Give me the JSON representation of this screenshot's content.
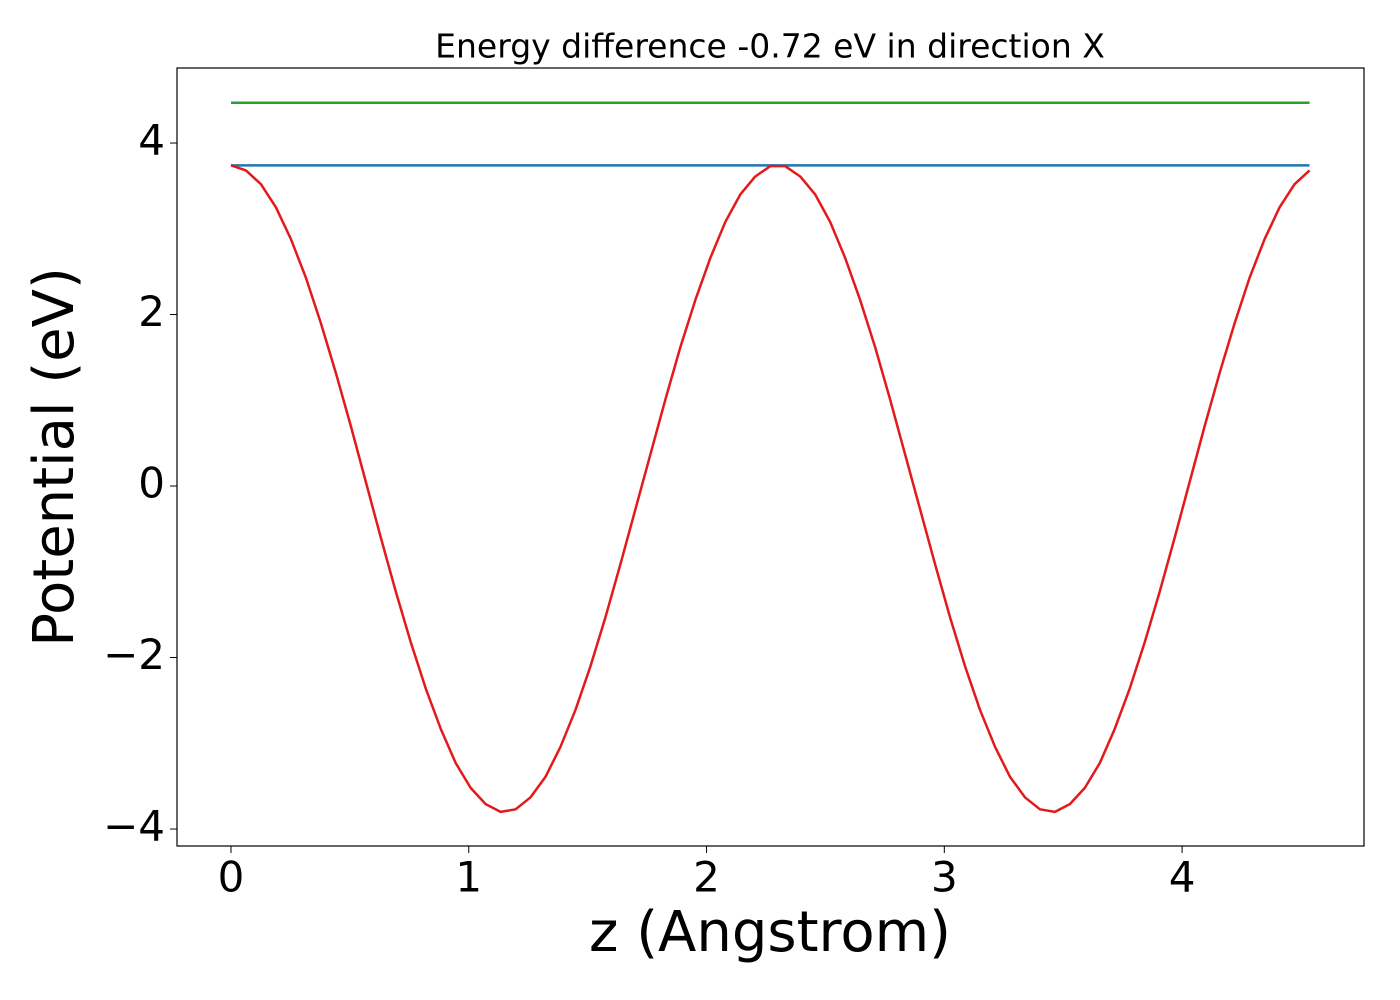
{
  "chart_data": {
    "type": "line",
    "title": "Energy difference -0.72 eV in direction X",
    "xlabel": "z (Angstrom)",
    "ylabel": "Potential (eV)",
    "xlim": [
      -0.227,
      4.765
    ],
    "ylim": [
      -4.198,
      4.875
    ],
    "xticks": [
      0,
      1,
      2,
      3,
      4
    ],
    "yticks": [
      {
        "value": -4,
        "label": "−4"
      },
      {
        "value": -2,
        "label": "−2"
      },
      0,
      2,
      4
    ],
    "grid": false,
    "series": [
      {
        "color": "#1f77b4",
        "x": [
          0,
          4.536
        ],
        "values": [
          3.74,
          3.74
        ]
      },
      {
        "color": "#2ca02c",
        "x": [
          0,
          4.536
        ],
        "values": [
          4.47,
          4.47
        ]
      },
      {
        "color": "#e31a1c",
        "x": [
          0,
          0.063,
          0.126,
          0.189,
          0.252,
          0.315,
          0.378,
          0.441,
          0.504,
          0.567,
          0.63,
          0.693,
          0.756,
          0.819,
          0.882,
          0.945,
          1.008,
          1.071,
          1.134,
          1.197,
          1.26,
          1.323,
          1.386,
          1.449,
          1.512,
          1.575,
          1.638,
          1.701,
          1.764,
          1.827,
          1.89,
          1.953,
          2.016,
          2.079,
          2.142,
          2.205,
          2.268,
          2.331,
          2.394,
          2.457,
          2.52,
          2.583,
          2.646,
          2.709,
          2.772,
          2.835,
          2.898,
          2.961,
          3.024,
          3.087,
          3.15,
          3.213,
          3.276,
          3.339,
          3.402,
          3.465,
          3.528,
          3.591,
          3.654,
          3.717,
          3.78,
          3.843,
          3.906,
          3.969,
          4.032,
          4.095,
          4.158,
          4.221,
          4.284,
          4.347,
          4.41,
          4.473,
          4.536
        ],
        "values": [
          3.74,
          3.68,
          3.52,
          3.25,
          2.88,
          2.43,
          1.9,
          1.32,
          0.7,
          0.05,
          -0.6,
          -1.23,
          -1.82,
          -2.36,
          -2.83,
          -3.23,
          -3.52,
          -3.71,
          -3.8,
          -3.77,
          -3.63,
          -3.39,
          -3.04,
          -2.61,
          -2.1,
          -1.53,
          -0.91,
          -0.27,
          0.37,
          1.01,
          1.62,
          2.17,
          2.66,
          3.08,
          3.4,
          3.61,
          3.73,
          3.73,
          3.61,
          3.4,
          3.08,
          2.66,
          2.17,
          1.62,
          1.01,
          0.37,
          -0.27,
          -0.91,
          -1.53,
          -2.1,
          -2.61,
          -3.04,
          -3.39,
          -3.63,
          -3.77,
          -3.8,
          -3.71,
          -3.52,
          -3.23,
          -2.83,
          -2.36,
          -1.82,
          -1.23,
          -0.6,
          0.05,
          0.7,
          1.32,
          1.9,
          2.43,
          2.88,
          3.25,
          3.52,
          3.68
        ]
      }
    ]
  }
}
